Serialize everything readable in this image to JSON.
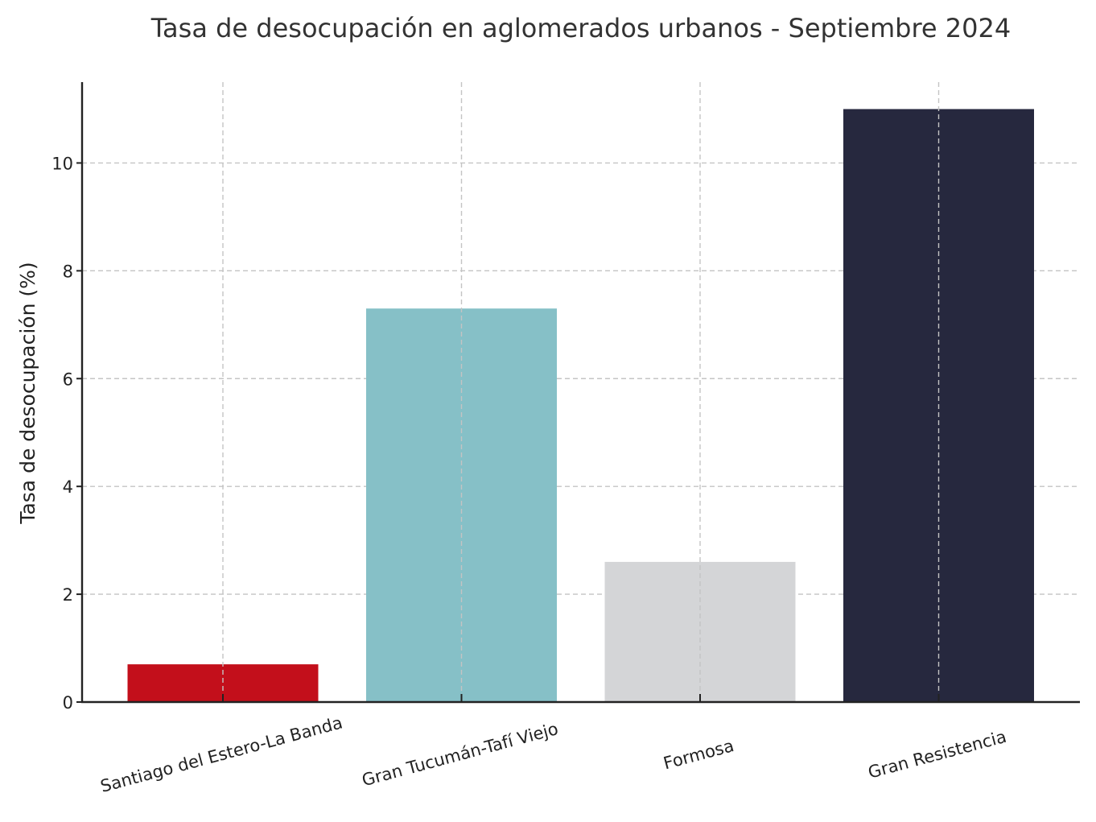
{
  "chart_data": {
    "type": "bar",
    "title": "Tasa de desocupación en aglomerados urbanos - Septiembre 2024",
    "xlabel": "",
    "ylabel": "Tasa de desocupación (%)",
    "categories": [
      "Santiago del Estero-La Banda",
      "Gran Tucumán-Tafí Viejo",
      "Formosa",
      "Gran Resistencia"
    ],
    "values": [
      0.7,
      7.3,
      2.6,
      11.0
    ],
    "colors": [
      "#c30f1b",
      "#86c0c7",
      "#d4d5d7",
      "#26283e"
    ],
    "ylim": [
      0,
      11.5
    ],
    "yticks": [
      0,
      2,
      4,
      6,
      8,
      10
    ],
    "ytick_labels": [
      "0",
      "2",
      "4",
      "6",
      "8",
      "10"
    ],
    "grid": true,
    "x_tick_rotation_deg": 15
  }
}
